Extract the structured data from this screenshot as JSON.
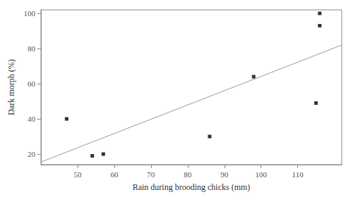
{
  "chart_data": {
    "type": "scatter",
    "xlabel": "Rain during brooding chicks (mm)",
    "ylabel": "Dark morph (%)",
    "series": [
      {
        "type": "line",
        "color": "#999999",
        "x": [
          40,
          122
        ],
        "values": [
          15.5,
          82
        ]
      },
      {
        "type": "scatter",
        "color": "black",
        "marker": "square",
        "x": [
          47,
          54,
          57,
          86,
          98,
          115,
          116,
          116
        ],
        "values": [
          40,
          19,
          20,
          30,
          64,
          49,
          93,
          100
        ]
      }
    ],
    "xlim": [
      40,
      122
    ],
    "ylim": [
      14,
      102
    ],
    "xticks": [
      50,
      60,
      70,
      80,
      90,
      100,
      110
    ],
    "yticks": [
      20,
      40,
      60,
      80,
      100
    ],
    "grid": false
  }
}
